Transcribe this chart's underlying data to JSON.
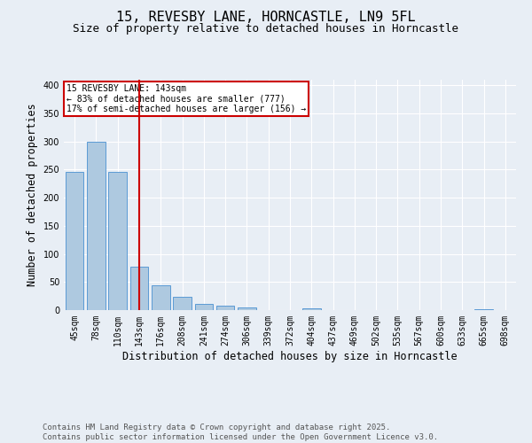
{
  "title1": "15, REVESBY LANE, HORNCASTLE, LN9 5FL",
  "title2": "Size of property relative to detached houses in Horncastle",
  "xlabel": "Distribution of detached houses by size in Horncastle",
  "ylabel": "Number of detached properties",
  "categories": [
    "45sqm",
    "78sqm",
    "110sqm",
    "143sqm",
    "176sqm",
    "208sqm",
    "241sqm",
    "274sqm",
    "306sqm",
    "339sqm",
    "372sqm",
    "404sqm",
    "437sqm",
    "469sqm",
    "502sqm",
    "535sqm",
    "567sqm",
    "600sqm",
    "633sqm",
    "665sqm",
    "698sqm"
  ],
  "values": [
    246,
    300,
    246,
    78,
    44,
    23,
    11,
    8,
    4,
    0,
    0,
    3,
    0,
    0,
    0,
    0,
    0,
    0,
    0,
    2,
    0
  ],
  "bar_color": "#aec9e0",
  "bar_edge_color": "#5b9bd5",
  "vline_x": 3,
  "vline_color": "#cc0000",
  "annotation_text": "15 REVESBY LANE: 143sqm\n← 83% of detached houses are smaller (777)\n17% of semi-detached houses are larger (156) →",
  "annotation_box_color": "#ffffff",
  "annotation_box_edge_color": "#cc0000",
  "background_color": "#e8eef5",
  "plot_bg_color": "#e8eef5",
  "ylim": [
    0,
    410
  ],
  "yticks": [
    0,
    50,
    100,
    150,
    200,
    250,
    300,
    350,
    400
  ],
  "footer": "Contains HM Land Registry data © Crown copyright and database right 2025.\nContains public sector information licensed under the Open Government Licence v3.0.",
  "title_fontsize": 11,
  "subtitle_fontsize": 9,
  "axis_fontsize": 8.5,
  "tick_fontsize": 7,
  "footer_fontsize": 6.5
}
